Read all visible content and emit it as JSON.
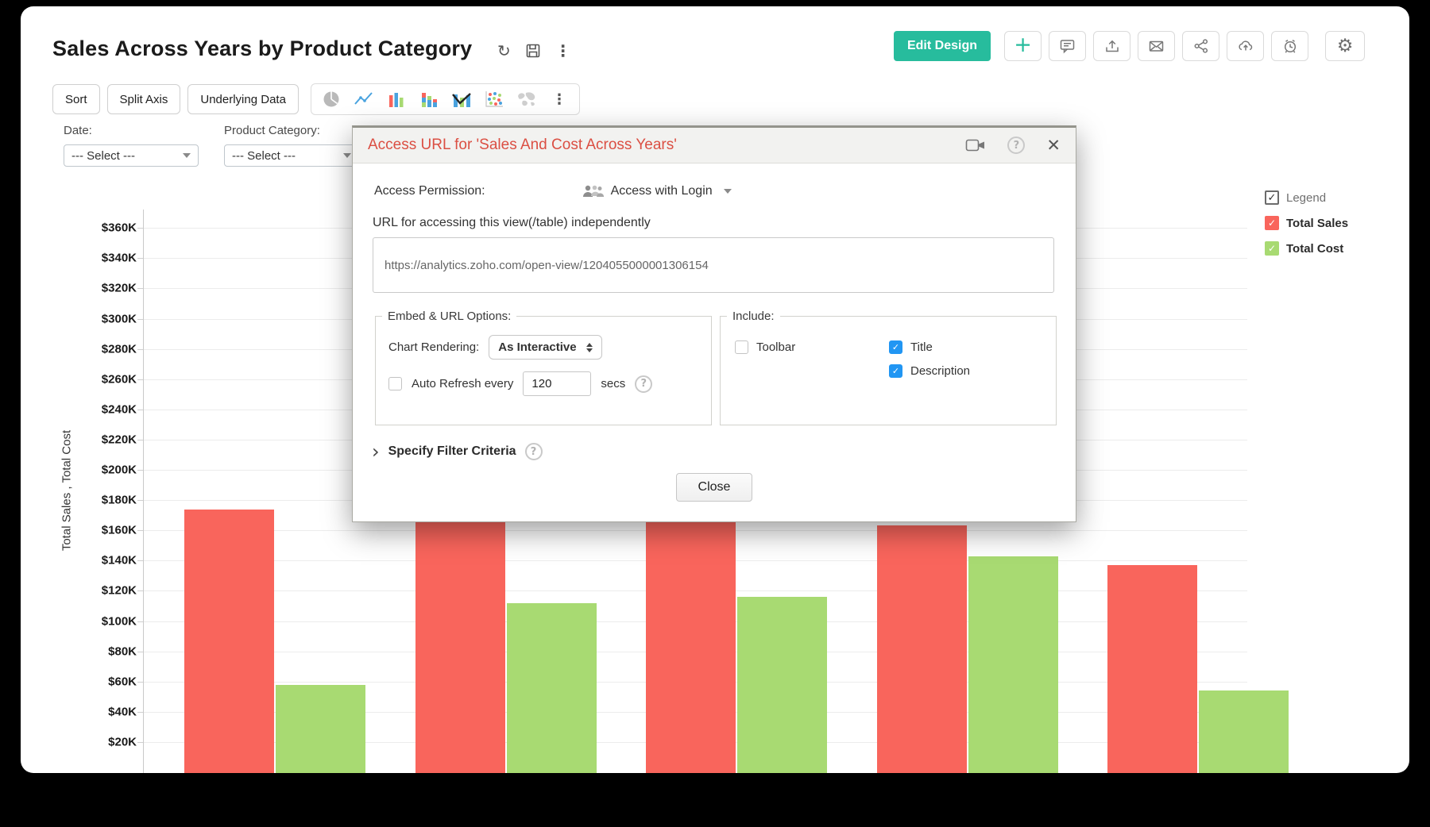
{
  "window_title": "Sales Across Years by Product Category",
  "icons": {
    "refresh": "↻",
    "more": "⋮",
    "gear": "⚙",
    "plus": "+",
    "close": "✕",
    "help": "?",
    "chevron_right": "›",
    "check": "✓"
  },
  "header": {
    "edit_design": "Edit Design"
  },
  "toolbar": {
    "sort": "Sort",
    "split_axis": "Split Axis",
    "underlying_data": "Underlying Data"
  },
  "filters": {
    "date_label": "Date:",
    "date_value": "--- Select ---",
    "category_label": "Product Category:",
    "category_value": "--- Select ---"
  },
  "legend": {
    "title": "Legend",
    "items": [
      {
        "label": "Total Sales",
        "color": "#F9655C"
      },
      {
        "label": "Total Cost",
        "color": "#A8DA72"
      }
    ]
  },
  "modal": {
    "title": "Access URL for 'Sales And Cost Across Years'",
    "access_permission_label": "Access Permission:",
    "access_permission_value": "Access with Login",
    "url_label": "URL for accessing this view(/table) independently",
    "url_value": "https://analytics.zoho.com/open-view/1204055000001306154",
    "embed_options": {
      "legend": "Embed & URL Options:",
      "chart_rendering_label": "Chart Rendering:",
      "chart_rendering_value": "As Interactive",
      "auto_refresh_label": "Auto Refresh every",
      "auto_refresh_value": "120",
      "secs_label": "secs",
      "auto_refresh_checked": false
    },
    "include": {
      "legend": "Include:",
      "toolbar_label": "Toolbar",
      "toolbar_checked": false,
      "title_label": "Title",
      "title_checked": true,
      "description_label": "Description",
      "description_checked": true
    },
    "filter_criteria_label": "Specify Filter Criteria",
    "close_label": "Close"
  },
  "chart_data": {
    "type": "bar",
    "title": "Sales Across Years by Product Category",
    "ylabel": "Total Sales , Total Cost",
    "ytick_prefix": "$",
    "ytick_suffix": "K",
    "yticks_k": [
      360,
      340,
      320,
      300,
      280,
      260,
      240,
      220,
      200,
      180,
      160,
      140,
      120,
      100,
      80,
      60,
      40,
      20
    ],
    "ylim_k": [
      0,
      380
    ],
    "grid": true,
    "legend_position": "top-right",
    "x_axis_labels_visible": false,
    "categories": [
      "",
      "",
      "",
      "",
      ""
    ],
    "series": [
      {
        "name": "Total Sales",
        "color": "#F9655C",
        "values_k": [
          174,
          168,
          167,
          163,
          137
        ]
      },
      {
        "name": "Total Cost",
        "color": "#A8DA72",
        "values_k": [
          58,
          112,
          116,
          143,
          54
        ]
      }
    ]
  }
}
